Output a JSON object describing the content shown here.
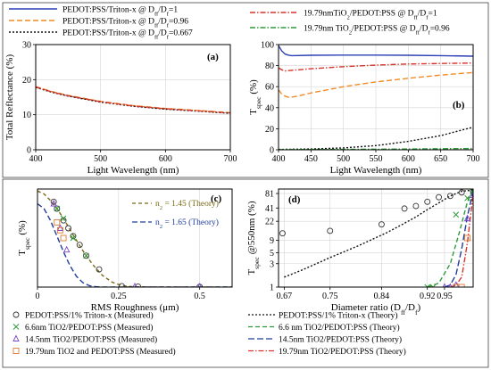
{
  "figure": {
    "colors": {
      "blue": "#2a3fb5",
      "red": "#d9332b",
      "orange": "#f08a24",
      "black": "#111111",
      "green": "#2f9a3a",
      "navy": "#1f3d9b",
      "purple": "#8b3aa6"
    }
  },
  "top_legend": [
    {
      "text": "PEDOT:PSS/Triton-x @ D",
      "sub1": "ff",
      "mid": "/D",
      "sub2": "f",
      "tail": "=1",
      "color": "#2a3fb5",
      "dash": "none"
    },
    {
      "text": "PEDOT:PSS/Triton-x @ D",
      "sub1": "ff",
      "mid": "/D",
      "sub2": "f",
      "tail": "=0.96",
      "color": "#f08a24",
      "dash": "6,3"
    },
    {
      "text": "PEDOT:PSS/Triton-x @ D",
      "sub1": "ff",
      "mid": "/D",
      "sub2": "f",
      "tail": "=0.667",
      "color": "#111111",
      "dash": "2,2"
    },
    {
      "text": "19.79nmTiO",
      "sub1": "2",
      "mid": "/PEDOT:PSS @ D",
      "sub2": "ff",
      "tail": "/D",
      "sub3": "f",
      "tail2": "=1",
      "color": "#d9332b",
      "dash": "6,2,1.5,2"
    },
    {
      "text": "19.79nm TiO",
      "sub1": "2",
      "mid": "/PEDOT:PSS @ D",
      "sub2": "ff",
      "tail": "/D",
      "sub3": "f",
      "tail2": "=0.96",
      "color": "#2f9a3a",
      "dash": "6,2,1.5,2"
    }
  ],
  "chart_data": [
    {
      "id": "a",
      "type": "line",
      "panel_label": "(a)",
      "xlabel": "Light Wavelength (nm)",
      "ylabel": "Total Reflectance (%)",
      "xlim": [
        400,
        700
      ],
      "ylim": [
        0,
        30
      ],
      "xticks": [
        400,
        500,
        600,
        700
      ],
      "yticks": [
        0,
        10,
        20,
        30
      ],
      "grid": true,
      "series": [
        {
          "name": "PEDOT:PSS/Triton-x @ Dff/Df=0.96",
          "color": "#f08a24",
          "dash": "6,3",
          "x": [
            400,
            425,
            450,
            500,
            550,
            600,
            650,
            700
          ],
          "y": [
            18.0,
            16.6,
            15.5,
            13.8,
            12.6,
            11.8,
            11.2,
            10.6
          ]
        },
        {
          "name": "PEDOT:PSS/Triton-x @ Dff/Df=0.667",
          "color": "#111111",
          "dash": "2,2",
          "x": [
            400,
            425,
            450,
            500,
            550,
            600,
            650,
            700
          ],
          "y": [
            17.8,
            16.4,
            15.3,
            13.6,
            12.4,
            11.6,
            11.0,
            10.4
          ]
        },
        {
          "name": "19.79nmTiO2/PEDOT:PSS @ Dff/Df=1",
          "color": "#d9332b",
          "dash": "6,2,1.5,2",
          "x": [
            400,
            425,
            450,
            500,
            550,
            600,
            650,
            700
          ],
          "y": [
            17.9,
            16.5,
            15.4,
            13.7,
            12.5,
            11.7,
            11.1,
            10.5
          ]
        }
      ]
    },
    {
      "id": "b",
      "type": "line",
      "panel_label": "(b)",
      "xlabel": "Light Wavelength (nm)",
      "ylabel": "T",
      "ylabel_sub": "spec",
      "ylabel_tail": " (%)",
      "xlim": [
        400,
        700
      ],
      "ylim": [
        0,
        100
      ],
      "xticks": [
        400,
        450,
        500,
        550,
        600,
        650,
        700
      ],
      "yticks": [
        0,
        20,
        40,
        60,
        80,
        100
      ],
      "grid": true,
      "series": [
        {
          "name": "PEDOT:PSS/Triton-x @ Dff/Df=1",
          "color": "#2a3fb5",
          "dash": "none",
          "x": [
            400,
            405,
            410,
            415,
            420,
            450,
            500,
            550,
            600,
            650,
            700
          ],
          "y": [
            99,
            94,
            91,
            90,
            89.5,
            89.8,
            90,
            90,
            89.8,
            89.5,
            89
          ]
        },
        {
          "name": "19.79nmTiO2/PEDOT:PSS @ Dff/Df=1",
          "color": "#d9332b",
          "dash": "6,2,1.5,2",
          "x": [
            400,
            405,
            410,
            420,
            450,
            500,
            550,
            600,
            650,
            700
          ],
          "y": [
            78,
            76,
            75,
            75.5,
            77,
            79,
            80.5,
            81.5,
            82,
            82.5
          ]
        },
        {
          "name": "PEDOT:PSS/Triton-x @ Dff/Df=0.96",
          "color": "#f08a24",
          "dash": "6,3",
          "x": [
            400,
            405,
            410,
            415,
            420,
            430,
            450,
            500,
            550,
            600,
            650,
            700
          ],
          "y": [
            57,
            53,
            51,
            50,
            50,
            51,
            54,
            60,
            64.5,
            68,
            71,
            73.5
          ]
        },
        {
          "name": "PEDOT:PSS/Triton-x @ Dff/Df=0.667",
          "color": "#111111",
          "dash": "2,2",
          "x": [
            400,
            450,
            500,
            550,
            600,
            650,
            700
          ],
          "y": [
            0.3,
            0.8,
            1.8,
            4,
            8,
            13.5,
            21.5
          ]
        },
        {
          "name": "19.79nm TiO2/PEDOT:PSS @ Dff/Df=0.96",
          "color": "#2f9a3a",
          "dash": "6,2,1.5,2",
          "x": [
            400,
            450,
            500,
            550,
            600,
            650,
            700
          ],
          "y": [
            0.2,
            0.3,
            0.4,
            0.6,
            0.8,
            1.0,
            1.2
          ]
        }
      ]
    },
    {
      "id": "c",
      "type": "scatter",
      "panel_label": "(c)",
      "xlabel": "RMS Roughness (μm)",
      "ylabel": "T",
      "ylabel_sub": "spec",
      "ylabel_tail": " (%)",
      "xlim": [
        0,
        0.6
      ],
      "ylim": [
        0,
        100
      ],
      "xticks": [
        0,
        0.25,
        0.5
      ],
      "xticklabels": [
        "0",
        "0.25",
        "0.5"
      ],
      "grid": true,
      "annotations": [
        {
          "text": "n",
          "sub": "2",
          "tail": " = 1.45 (Theory)",
          "color": "#7a6a14"
        },
        {
          "text": "n",
          "sub": "2",
          "tail": " = 1.65 (Theory)",
          "color": "#1f3d9b"
        }
      ],
      "series": [
        {
          "name": "n2 = 1.45 (Theory)",
          "kind": "line",
          "color": "#7a6a14",
          "dash": "4,3",
          "x": [
            0,
            0.02,
            0.05,
            0.08,
            0.11,
            0.14,
            0.17,
            0.2,
            0.23,
            0.26,
            0.3,
            0.4,
            0.5,
            0.6
          ],
          "y": [
            98,
            95,
            85,
            70,
            53,
            37,
            23,
            12,
            5,
            1.5,
            0.2,
            0,
            0,
            0
          ]
        },
        {
          "name": "n2 = 1.65 (Theory)",
          "kind": "line",
          "color": "#1f3d9b",
          "dash": "6,3",
          "x": [
            0,
            0.02,
            0.04,
            0.06,
            0.08,
            0.1,
            0.12,
            0.14,
            0.16,
            0.18,
            0.2,
            0.3,
            0.6
          ],
          "y": [
            85,
            80,
            68,
            52,
            36,
            22,
            11,
            4.5,
            1.5,
            0.4,
            0,
            0,
            0
          ]
        },
        {
          "name": "PEDOT:PSS/1% Triton-x (Measured)",
          "kind": "marker",
          "marker": "circle",
          "color": "#333333",
          "x": [
            0.05,
            0.06,
            0.08,
            0.095,
            0.11,
            0.13,
            0.15,
            0.19,
            0.26,
            0.31,
            0.5
          ],
          "y": [
            87,
            80,
            68,
            60,
            52,
            43,
            32,
            18,
            1,
            0.5,
            0.3
          ]
        },
        {
          "name": "6.6nm TiO2/PEDOT:PSS (Measured)",
          "kind": "marker",
          "marker": "x",
          "color": "#2f9a3a",
          "x": [
            0.06,
            0.08,
            0.11,
            0.15
          ],
          "y": [
            80,
            70,
            50,
            32
          ]
        },
        {
          "name": "14.5nm TiO2/PEDOT:PSS (Measured)",
          "kind": "marker",
          "marker": "triangle",
          "color": "#7a45c8",
          "x": [
            0.05,
            0.07,
            0.09,
            0.3,
            0.5
          ],
          "y": [
            85,
            60,
            38,
            0.5,
            0.3
          ]
        },
        {
          "name": "19.79nm TiO2 and PEDOT:PSS (Measured)",
          "kind": "marker",
          "marker": "square",
          "color": "#e07a2e",
          "x": [
            0.06,
            0.07,
            0.08
          ],
          "y": [
            66,
            58,
            50
          ]
        }
      ]
    },
    {
      "id": "d",
      "type": "scatter",
      "panel_label": "(d)",
      "xlabel": "Diameter ratio (D",
      "xlabel_sub1": "ff",
      "xlabel_mid": "/D",
      "xlabel_sub2": "f",
      "xlabel_tail": ")",
      "ylabel": "T",
      "ylabel_sub": "spec",
      "ylabel_tail": " @550nm (%)",
      "xlim": [
        0.66,
        1.0
      ],
      "ylim": [
        1,
        100
      ],
      "yscale": "log",
      "xticks": [
        0.67,
        0.75,
        0.84,
        0.92,
        0.95
      ],
      "xticklabels": [
        "0.67",
        "0.75",
        "0.84",
        "0.92",
        "0.95"
      ],
      "yticks": [
        1,
        3,
        5,
        9,
        22,
        41,
        81
      ],
      "yticklabels": [
        "1",
        "3",
        "5",
        "9",
        "22",
        "41",
        "81"
      ],
      "grid": true,
      "series": [
        {
          "name": "PEDOT:PSS/1% Triton-x (Theory)",
          "kind": "line",
          "color": "#111111",
          "dash": "2,2",
          "x": [
            0.67,
            0.7,
            0.75,
            0.8,
            0.85,
            0.88,
            0.9,
            0.92,
            0.94,
            0.96,
            0.98,
            1.0
          ],
          "y": [
            1.6,
            2.2,
            4,
            7,
            13,
            20,
            27,
            38,
            52,
            72,
            90,
            95
          ]
        },
        {
          "name": "6.6 nm TiO2/PEDOT:PSS (Theory)",
          "kind": "line",
          "color": "#2f9a3a",
          "dash": "5,3",
          "x": [
            0.92,
            0.94,
            0.96,
            0.975,
            0.99,
            1.0
          ],
          "y": [
            1,
            1.2,
            3,
            12,
            55,
            100
          ]
        },
        {
          "name": "14.5nm TiO2/PEDOT:PSS (Theory)",
          "kind": "line",
          "color": "#1f3d9b",
          "dash": "7,3",
          "x": [
            0.95,
            0.96,
            0.97,
            0.98,
            0.99,
            1.0
          ],
          "y": [
            1,
            1.1,
            1.8,
            6,
            28,
            90
          ]
        },
        {
          "name": "19.79nm TiO2/PEDOT:PSS (Theory)",
          "kind": "line",
          "color": "#d9332b",
          "dash": "6,2,1.5,2",
          "x": [
            0.96,
            0.97,
            0.98,
            0.99,
            1.0
          ],
          "y": [
            1,
            1.1,
            1.6,
            8,
            80
          ]
        },
        {
          "name": "PEDOT:PSS/1% Triton-x (Measured)",
          "kind": "marker",
          "marker": "circle",
          "color": "#333333",
          "x": [
            0.667,
            0.75,
            0.84,
            0.88,
            0.9,
            0.92,
            0.94,
            0.96,
            0.98,
            1.0
          ],
          "y": [
            12.5,
            14,
            19,
            40,
            45,
            55,
            68,
            72,
            85,
            90
          ]
        },
        {
          "name": "6.6nm TiO2/PEDOT:PSS (Measured)",
          "kind": "marker",
          "marker": "x",
          "color": "#2f9a3a",
          "x": [
            0.92,
            0.93,
            0.97,
            0.99,
            1.0
          ],
          "y": [
            1,
            1,
            30,
            65,
            85
          ]
        },
        {
          "name": "14.5nm TiO2/PEDOT:PSS (Measured)",
          "kind": "marker",
          "marker": "triangle",
          "color": "#7a45c8",
          "x": [
            0.95,
            0.96,
            0.97,
            0.99,
            1.0
          ],
          "y": [
            1,
            1,
            1.1,
            25,
            75
          ]
        },
        {
          "name": "19.79nm TiO2 and PEDOT:PSS (Measured)",
          "kind": "marker",
          "marker": "square",
          "color": "#e07a2e",
          "x": [
            0.97,
            0.98,
            0.99
          ],
          "y": [
            1,
            1,
            10
          ]
        }
      ]
    }
  ],
  "bottom_legend": {
    "left": [
      {
        "label": "PEDOT:PSS/1% Triton-x (Measured)",
        "marker": "circle",
        "color": "#333333"
      },
      {
        "label": "6.6nm TiO2/PEDOT:PSS (Measured)",
        "marker": "x",
        "color": "#2f9a3a"
      },
      {
        "label": "14.5nm TiO2/PEDOT:PSS (Measured)",
        "marker": "triangle",
        "color": "#7a45c8"
      },
      {
        "label": "19.79nm TiO2 and PEDOT:PSS (Measured)",
        "marker": "square",
        "color": "#e07a2e"
      }
    ],
    "right": [
      {
        "label": "PEDOT:PSS/1% Triton-x (Theory)",
        "color": "#111111",
        "dash": "2,2"
      },
      {
        "label": "6.6 nm TiO2/PEDOT:PSS (Theory)",
        "color": "#2f9a3a",
        "dash": "5,3"
      },
      {
        "label": "14.5nm TiO2/PEDOT:PSS (Theory)",
        "color": "#1f3d9b",
        "dash": "7,3"
      },
      {
        "label": "19.79nm TiO2/PEDOT:PSS (Theory)",
        "color": "#d9332b",
        "dash": "6,2,1.5,2"
      }
    ]
  }
}
